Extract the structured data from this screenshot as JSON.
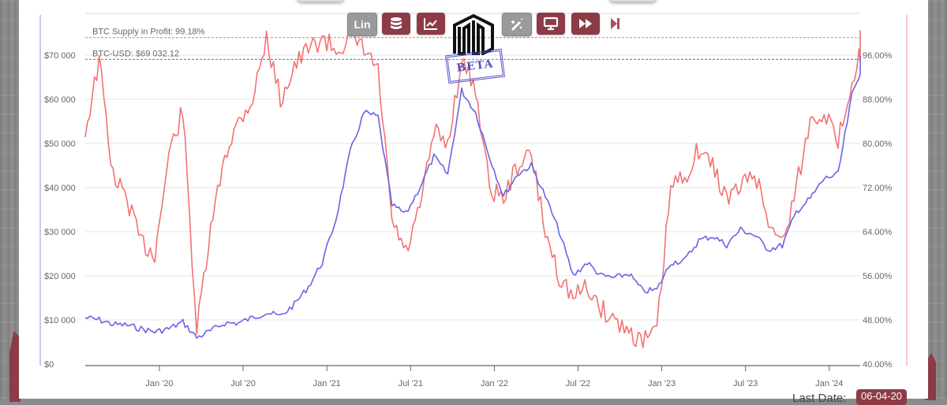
{
  "toolbar": {
    "scale_button": "Lin",
    "buttons": [
      {
        "name": "scale-toggle",
        "label": "Lin",
        "state": "inactive"
      },
      {
        "name": "database",
        "icon": "database-icon",
        "state": "active"
      },
      {
        "name": "chart-type",
        "icon": "area-chart-icon",
        "state": "active"
      },
      {
        "name": "indicators",
        "icon": "magic-wand-icon",
        "state": "inactive"
      },
      {
        "name": "fullscreen",
        "icon": "monitor-icon",
        "state": "active"
      },
      {
        "name": "fast-forward",
        "icon": "fast-forward-icon",
        "state": "active"
      },
      {
        "name": "skip-end",
        "icon": "skip-end-icon",
        "state": "active"
      }
    ]
  },
  "logo": {
    "badge": "BETA"
  },
  "footer": {
    "last_date_label": "Last Date:",
    "last_date_value": "06-04-20"
  },
  "colors": {
    "btc_usd": "#6b63e6",
    "supply_in_profit": "#f27272",
    "button_active": "#8d3b47",
    "button_inactive": "#9a9a9a",
    "left_axis_line": "#b9b2f0",
    "right_axis_line": "#f5b8b8"
  },
  "chart_data": {
    "type": "line",
    "title": "",
    "xlabel": "",
    "ylabel_left": "BTC-USD",
    "ylabel_right": "BTC Supply in Profit",
    "x_ticks": [
      "Jan '20",
      "Jul '20",
      "Jan '21",
      "Jul '21",
      "Jan '22",
      "Jul '22",
      "Jan '23",
      "Jul '23",
      "Jan '24"
    ],
    "y_left_ticks": [
      "$0",
      "$10 000",
      "$20 000",
      "$30 000",
      "$40 000",
      "$50 000",
      "$60 000",
      "$70 000"
    ],
    "y_right_ticks": [
      "40.00%",
      "48.00%",
      "56.00%",
      "64.00%",
      "72.00%",
      "80.00%",
      "88.00%",
      "96.00%"
    ],
    "ylim_left": [
      0,
      74000
    ],
    "ylim_right": [
      40,
      100
    ],
    "grid": true,
    "annotations": [
      {
        "label": "BTC Supply in Profit: 99.18%",
        "value": 99.18,
        "axis": "right",
        "style": "dashed",
        "color": "#f27272"
      },
      {
        "label": "BTC-USD: $69 032.12",
        "value": 69032.12,
        "axis": "left",
        "style": "dashed",
        "color": "#6b63e6"
      }
    ],
    "x": [
      "2019-07",
      "2019-08",
      "2019-09",
      "2019-10",
      "2019-11",
      "2019-12",
      "2020-01",
      "2020-02",
      "2020-03",
      "2020-04",
      "2020-05",
      "2020-06",
      "2020-07",
      "2020-08",
      "2020-09",
      "2020-10",
      "2020-11",
      "2020-12",
      "2021-01",
      "2021-02",
      "2021-03",
      "2021-04",
      "2021-05",
      "2021-06",
      "2021-07",
      "2021-08",
      "2021-09",
      "2021-10",
      "2021-11",
      "2021-12",
      "2022-01",
      "2022-02",
      "2022-03",
      "2022-04",
      "2022-05",
      "2022-06",
      "2022-07",
      "2022-08",
      "2022-09",
      "2022-10",
      "2022-11",
      "2022-12",
      "2023-01",
      "2023-02",
      "2023-03",
      "2023-04",
      "2023-05",
      "2023-06",
      "2023-07",
      "2023-08",
      "2023-09",
      "2023-10",
      "2023-11",
      "2023-12",
      "2024-01",
      "2024-02",
      "2024-03",
      "2024-04"
    ],
    "series": [
      {
        "name": "BTC-USD",
        "axis": "left",
        "color": "#6b63e6",
        "values": [
          10500,
          10000,
          9000,
          8800,
          8000,
          7300,
          8000,
          9500,
          6000,
          7500,
          9300,
          9300,
          10500,
          11700,
          10800,
          13500,
          17500,
          23000,
          33000,
          48000,
          57000,
          56000,
          36000,
          34000,
          40000,
          47000,
          43000,
          62000,
          57000,
          47000,
          38000,
          43000,
          45000,
          38000,
          30000,
          20000,
          23000,
          20000,
          19500,
          20500,
          16500,
          16800,
          23000,
          23500,
          28000,
          29000,
          27000,
          30500,
          29200,
          26000,
          26900,
          34500,
          37500,
          42000,
          43000,
          61000,
          69000,
          69032
        ]
      },
      {
        "name": "BTC Supply in Profit",
        "axis": "right",
        "color": "#f27272",
        "values": [
          82,
          95,
          74,
          70,
          62,
          60,
          78,
          86,
          46,
          64,
          78,
          84,
          88,
          99,
          88,
          94,
          97,
          99,
          97,
          99,
          97,
          93,
          66,
          60,
          68,
          82,
          80,
          95,
          90,
          72,
          70,
          76,
          78,
          64,
          56,
          52,
          54,
          50,
          48,
          46,
          44,
          46,
          72,
          74,
          79,
          76,
          70,
          72,
          75,
          66,
          62,
          72,
          84,
          86,
          80,
          92,
          99,
          99.18
        ]
      }
    ]
  }
}
